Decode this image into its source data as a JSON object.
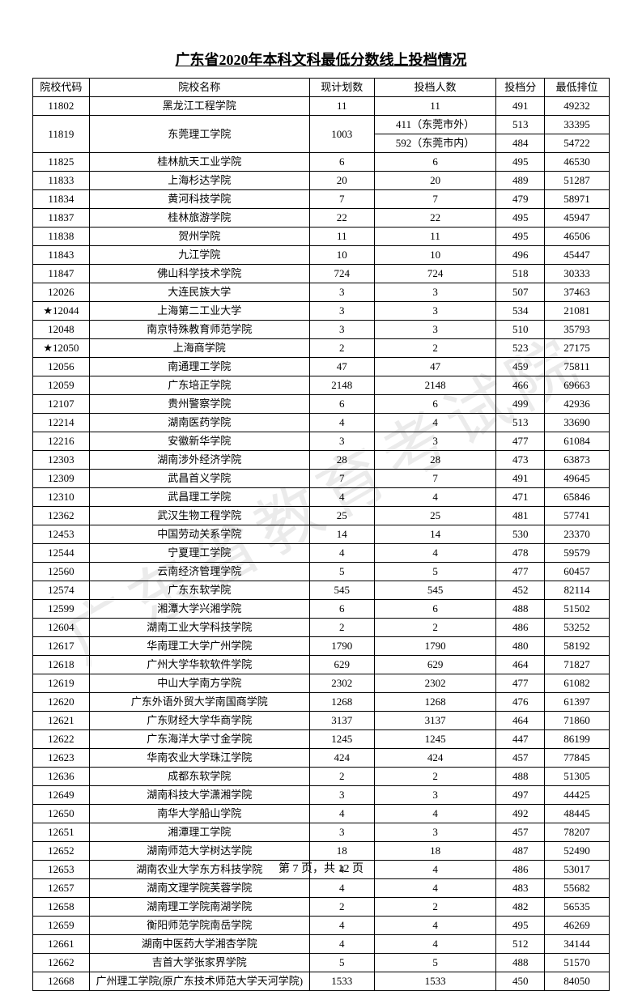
{
  "title": "广东省2020年本科文科最低分数线上投档情况",
  "watermark": "广东省教育考试院",
  "footer": "第 7 页，共 12 页",
  "columns": [
    "院校代码",
    "院校名称",
    "现计划数",
    "投档人数",
    "投档分",
    "最低排位"
  ],
  "rows": [
    {
      "code": "11802",
      "name": "黑龙江工程学院",
      "plan": "11",
      "admit": "11",
      "score": "491",
      "rank": "49232"
    },
    {
      "code": "11819",
      "name": "东莞理工学院",
      "plan": "1003",
      "merged": true,
      "sub": [
        {
          "admit": "411（东莞市外）",
          "score": "513",
          "rank": "33395"
        },
        {
          "admit": "592（东莞市内）",
          "score": "484",
          "rank": "54722"
        }
      ]
    },
    {
      "code": "11825",
      "name": "桂林航天工业学院",
      "plan": "6",
      "admit": "6",
      "score": "495",
      "rank": "46530"
    },
    {
      "code": "11833",
      "name": "上海杉达学院",
      "plan": "20",
      "admit": "20",
      "score": "489",
      "rank": "51287"
    },
    {
      "code": "11834",
      "name": "黄河科技学院",
      "plan": "7",
      "admit": "7",
      "score": "479",
      "rank": "58971"
    },
    {
      "code": "11837",
      "name": "桂林旅游学院",
      "plan": "22",
      "admit": "22",
      "score": "495",
      "rank": "45947"
    },
    {
      "code": "11838",
      "name": "贺州学院",
      "plan": "11",
      "admit": "11",
      "score": "495",
      "rank": "46506"
    },
    {
      "code": "11843",
      "name": "九江学院",
      "plan": "10",
      "admit": "10",
      "score": "496",
      "rank": "45447"
    },
    {
      "code": "11847",
      "name": "佛山科学技术学院",
      "plan": "724",
      "admit": "724",
      "score": "518",
      "rank": "30333"
    },
    {
      "code": "12026",
      "name": "大连民族大学",
      "plan": "3",
      "admit": "3",
      "score": "507",
      "rank": "37463"
    },
    {
      "code": "★12044",
      "name": "上海第二工业大学",
      "plan": "3",
      "admit": "3",
      "score": "534",
      "rank": "21081"
    },
    {
      "code": "12048",
      "name": "南京特殊教育师范学院",
      "plan": "3",
      "admit": "3",
      "score": "510",
      "rank": "35793"
    },
    {
      "code": "★12050",
      "name": "上海商学院",
      "plan": "2",
      "admit": "2",
      "score": "523",
      "rank": "27175"
    },
    {
      "code": "12056",
      "name": "南通理工学院",
      "plan": "47",
      "admit": "47",
      "score": "459",
      "rank": "75811"
    },
    {
      "code": "12059",
      "name": "广东培正学院",
      "plan": "2148",
      "admit": "2148",
      "score": "466",
      "rank": "69663"
    },
    {
      "code": "12107",
      "name": "贵州警察学院",
      "plan": "6",
      "admit": "6",
      "score": "499",
      "rank": "42936"
    },
    {
      "code": "12214",
      "name": "湖南医药学院",
      "plan": "4",
      "admit": "4",
      "score": "513",
      "rank": "33690"
    },
    {
      "code": "12216",
      "name": "安徽新华学院",
      "plan": "3",
      "admit": "3",
      "score": "477",
      "rank": "61084"
    },
    {
      "code": "12303",
      "name": "湖南涉外经济学院",
      "plan": "28",
      "admit": "28",
      "score": "473",
      "rank": "63873"
    },
    {
      "code": "12309",
      "name": "武昌首义学院",
      "plan": "7",
      "admit": "7",
      "score": "491",
      "rank": "49645"
    },
    {
      "code": "12310",
      "name": "武昌理工学院",
      "plan": "4",
      "admit": "4",
      "score": "471",
      "rank": "65846"
    },
    {
      "code": "12362",
      "name": "武汉生物工程学院",
      "plan": "25",
      "admit": "25",
      "score": "481",
      "rank": "57741"
    },
    {
      "code": "12453",
      "name": "中国劳动关系学院",
      "plan": "14",
      "admit": "14",
      "score": "530",
      "rank": "23370"
    },
    {
      "code": "12544",
      "name": "宁夏理工学院",
      "plan": "4",
      "admit": "4",
      "score": "478",
      "rank": "59579"
    },
    {
      "code": "12560",
      "name": "云南经济管理学院",
      "plan": "5",
      "admit": "5",
      "score": "477",
      "rank": "60457"
    },
    {
      "code": "12574",
      "name": "广东东软学院",
      "plan": "545",
      "admit": "545",
      "score": "452",
      "rank": "82114"
    },
    {
      "code": "12599",
      "name": "湘潭大学兴湘学院",
      "plan": "6",
      "admit": "6",
      "score": "488",
      "rank": "51502"
    },
    {
      "code": "12604",
      "name": "湖南工业大学科技学院",
      "plan": "2",
      "admit": "2",
      "score": "486",
      "rank": "53252"
    },
    {
      "code": "12617",
      "name": "华南理工大学广州学院",
      "plan": "1790",
      "admit": "1790",
      "score": "480",
      "rank": "58192"
    },
    {
      "code": "12618",
      "name": "广州大学华软软件学院",
      "plan": "629",
      "admit": "629",
      "score": "464",
      "rank": "71827"
    },
    {
      "code": "12619",
      "name": "中山大学南方学院",
      "plan": "2302",
      "admit": "2302",
      "score": "477",
      "rank": "61082"
    },
    {
      "code": "12620",
      "name": "广东外语外贸大学南国商学院",
      "plan": "1268",
      "admit": "1268",
      "score": "476",
      "rank": "61397"
    },
    {
      "code": "12621",
      "name": "广东财经大学华商学院",
      "plan": "3137",
      "admit": "3137",
      "score": "464",
      "rank": "71860"
    },
    {
      "code": "12622",
      "name": "广东海洋大学寸金学院",
      "plan": "1245",
      "admit": "1245",
      "score": "447",
      "rank": "86199"
    },
    {
      "code": "12623",
      "name": "华南农业大学珠江学院",
      "plan": "424",
      "admit": "424",
      "score": "457",
      "rank": "77845"
    },
    {
      "code": "12636",
      "name": "成都东软学院",
      "plan": "2",
      "admit": "2",
      "score": "488",
      "rank": "51305"
    },
    {
      "code": "12649",
      "name": "湖南科技大学潇湘学院",
      "plan": "3",
      "admit": "3",
      "score": "497",
      "rank": "44425"
    },
    {
      "code": "12650",
      "name": "南华大学船山学院",
      "plan": "4",
      "admit": "4",
      "score": "492",
      "rank": "48445"
    },
    {
      "code": "12651",
      "name": "湘潭理工学院",
      "plan": "3",
      "admit": "3",
      "score": "457",
      "rank": "78207"
    },
    {
      "code": "12652",
      "name": "湖南师范大学树达学院",
      "plan": "18",
      "admit": "18",
      "score": "487",
      "rank": "52490"
    },
    {
      "code": "12653",
      "name": "湖南农业大学东方科技学院",
      "plan": "4",
      "admit": "4",
      "score": "486",
      "rank": "53017"
    },
    {
      "code": "12657",
      "name": "湖南文理学院芙蓉学院",
      "plan": "4",
      "admit": "4",
      "score": "483",
      "rank": "55682"
    },
    {
      "code": "12658",
      "name": "湖南理工学院南湖学院",
      "plan": "2",
      "admit": "2",
      "score": "482",
      "rank": "56535"
    },
    {
      "code": "12659",
      "name": "衡阳师范学院南岳学院",
      "plan": "4",
      "admit": "4",
      "score": "495",
      "rank": "46269"
    },
    {
      "code": "12661",
      "name": "湖南中医药大学湘杏学院",
      "plan": "4",
      "admit": "4",
      "score": "512",
      "rank": "34144"
    },
    {
      "code": "12662",
      "name": "吉首大学张家界学院",
      "plan": "5",
      "admit": "5",
      "score": "488",
      "rank": "51570"
    },
    {
      "code": "12668",
      "name": "广州理工学院(原广东技术师范大学天河学院)",
      "plan": "1533",
      "admit": "1533",
      "score": "450",
      "rank": "84050"
    }
  ]
}
